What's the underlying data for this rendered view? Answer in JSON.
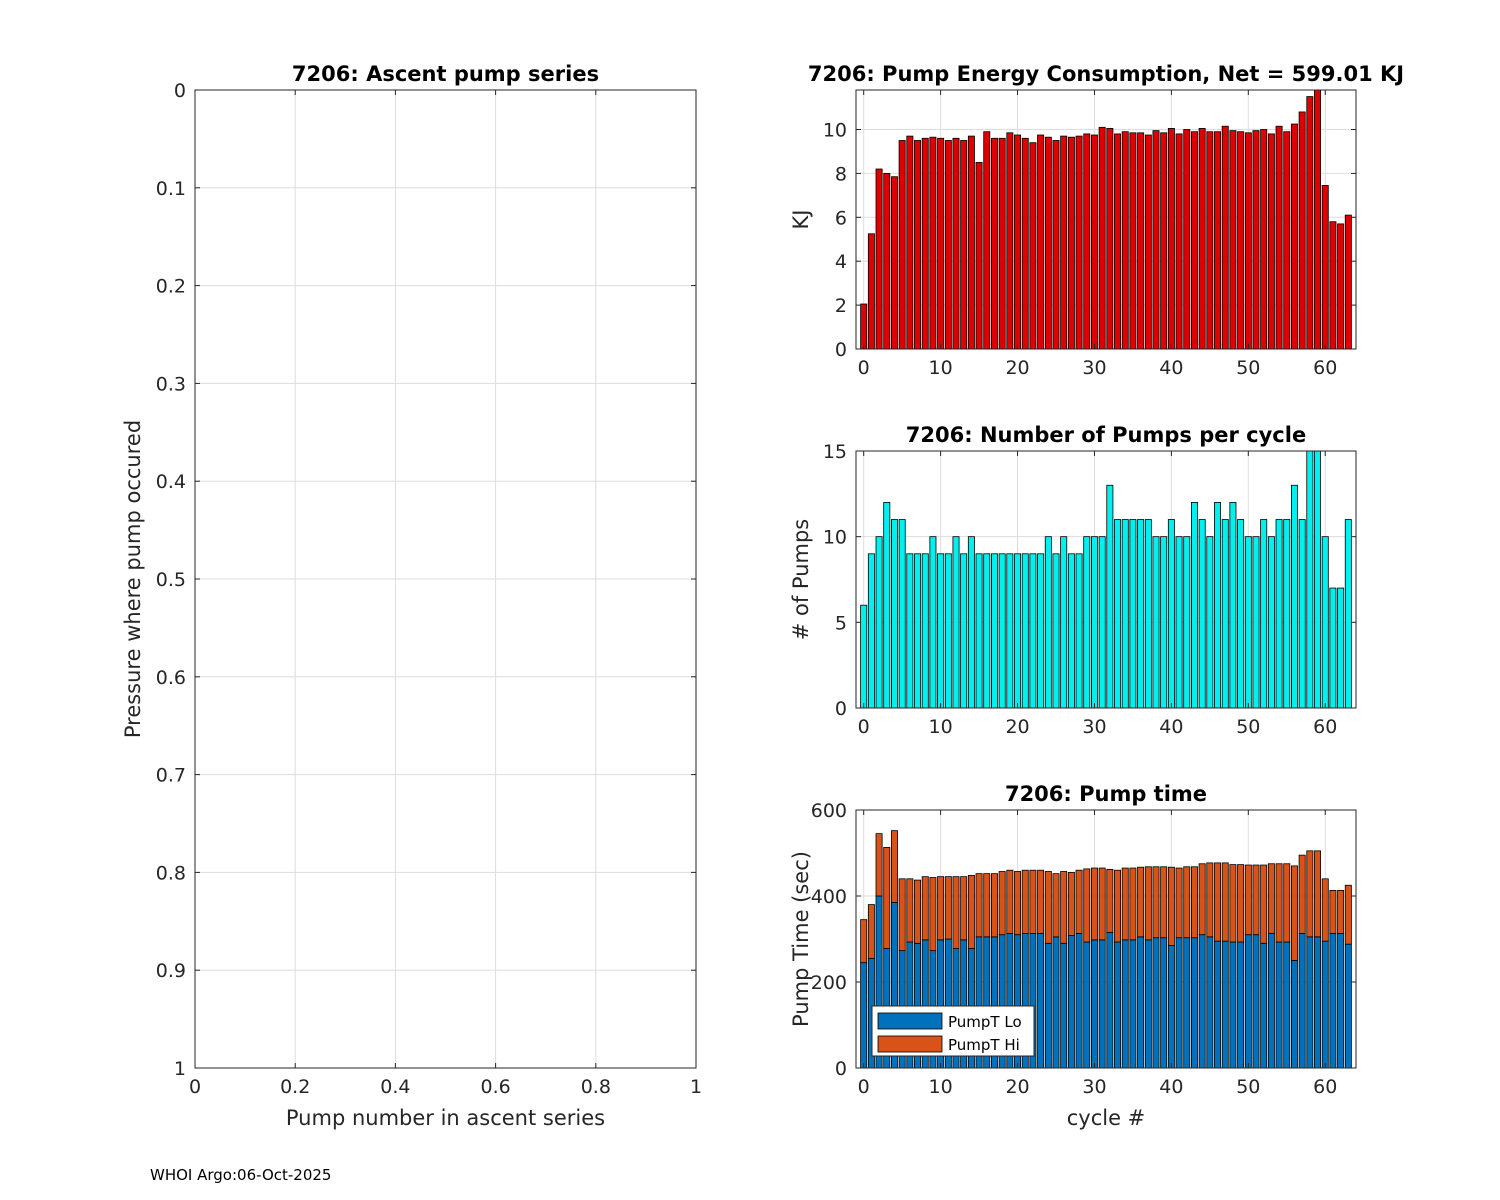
{
  "footer": "WHOI Argo:06-Oct-2025",
  "colors": {
    "energy_bar": "#e00000",
    "pumps_bar": "#00f0f0",
    "lo_bar": "#0072bd",
    "hi_bar": "#d95319",
    "grid": "#dddddd"
  },
  "chart_data": [
    {
      "id": "ascent",
      "type": "scatter",
      "title": "7206: Ascent pump series",
      "xlabel": "Pump number in ascent series",
      "ylabel": "Pressure where pump occured",
      "xlim": [
        0,
        1
      ],
      "ylim": [
        0,
        1
      ],
      "y_reversed": true,
      "xticks": [
        0,
        0.2,
        0.4,
        0.6,
        0.8,
        1
      ],
      "xtick_labels": [
        "0",
        "0.2",
        "0.4",
        "0.6",
        "0.8",
        "1"
      ],
      "yticks": [
        0,
        0.1,
        0.2,
        0.3,
        0.4,
        0.5,
        0.6,
        0.7,
        0.8,
        0.9,
        1
      ],
      "ytick_labels": [
        "0",
        "0.1",
        "0.2",
        "0.3",
        "0.4",
        "0.5",
        "0.6",
        "0.7",
        "0.8",
        "0.9",
        "1"
      ],
      "grid": true,
      "points": []
    },
    {
      "id": "energy",
      "type": "bar",
      "title": "7206: Pump Energy Consumption,  Net = 599.01 KJ",
      "xlabel": "",
      "ylabel": "KJ",
      "xlim": [
        -1,
        64
      ],
      "ylim": [
        0,
        11.8
      ],
      "xticks": [
        0,
        10,
        20,
        30,
        40,
        50,
        60
      ],
      "xtick_labels": [
        "0",
        "10",
        "20",
        "30",
        "40",
        "50",
        "60"
      ],
      "yticks": [
        0,
        2,
        4,
        6,
        8,
        10
      ],
      "ytick_labels": [
        "0",
        "2",
        "4",
        "6",
        "8",
        "10"
      ],
      "grid": true,
      "x": [
        0,
        1,
        2,
        3,
        4,
        5,
        6,
        7,
        8,
        9,
        10,
        11,
        12,
        13,
        14,
        15,
        16,
        17,
        18,
        19,
        20,
        21,
        22,
        23,
        24,
        25,
        26,
        27,
        28,
        29,
        30,
        31,
        32,
        33,
        34,
        35,
        36,
        37,
        38,
        39,
        40,
        41,
        42,
        43,
        44,
        45,
        46,
        47,
        48,
        49,
        50,
        51,
        52,
        53,
        54,
        55,
        56,
        57,
        58,
        59,
        60,
        61,
        62,
        63
      ],
      "values": [
        2.05,
        5.25,
        8.2,
        8.0,
        7.85,
        9.5,
        9.7,
        9.5,
        9.6,
        9.65,
        9.6,
        9.5,
        9.6,
        9.5,
        9.7,
        8.5,
        9.9,
        9.6,
        9.6,
        9.85,
        9.75,
        9.6,
        9.4,
        9.75,
        9.65,
        9.5,
        9.7,
        9.65,
        9.7,
        9.8,
        9.75,
        10.1,
        10.05,
        9.8,
        9.9,
        9.85,
        9.85,
        9.75,
        9.95,
        9.85,
        10.05,
        9.8,
        10.0,
        9.9,
        10.05,
        9.9,
        9.9,
        10.15,
        9.95,
        9.9,
        9.85,
        9.95,
        10.0,
        9.8,
        10.15,
        9.9,
        10.25,
        10.8,
        11.5,
        11.8,
        7.45,
        5.8,
        5.7,
        6.1
      ]
    },
    {
      "id": "pumps",
      "type": "bar",
      "title": "7206: Number of Pumps per cycle",
      "xlabel": "",
      "ylabel": "# of Pumps",
      "xlim": [
        -1,
        64
      ],
      "ylim": [
        0,
        15
      ],
      "xticks": [
        0,
        10,
        20,
        30,
        40,
        50,
        60
      ],
      "xtick_labels": [
        "0",
        "10",
        "20",
        "30",
        "40",
        "50",
        "60"
      ],
      "yticks": [
        0,
        5,
        10,
        15
      ],
      "ytick_labels": [
        "0",
        "5",
        "10",
        "15"
      ],
      "grid": true,
      "x": [
        0,
        1,
        2,
        3,
        4,
        5,
        6,
        7,
        8,
        9,
        10,
        11,
        12,
        13,
        14,
        15,
        16,
        17,
        18,
        19,
        20,
        21,
        22,
        23,
        24,
        25,
        26,
        27,
        28,
        29,
        30,
        31,
        32,
        33,
        34,
        35,
        36,
        37,
        38,
        39,
        40,
        41,
        42,
        43,
        44,
        45,
        46,
        47,
        48,
        49,
        50,
        51,
        52,
        53,
        54,
        55,
        56,
        57,
        58,
        59,
        60,
        61,
        62,
        63
      ],
      "values": [
        6,
        9,
        10,
        12,
        11,
        11,
        9,
        9,
        9,
        10,
        9,
        9,
        10,
        9,
        10,
        9,
        9,
        9,
        9,
        9,
        9,
        9,
        9,
        9,
        10,
        9,
        10,
        9,
        9,
        10,
        10,
        10,
        13,
        11,
        11,
        11,
        11,
        11,
        10,
        10,
        11,
        10,
        10,
        12,
        11,
        10,
        12,
        11,
        12,
        11,
        10,
        10,
        11,
        10,
        11,
        11,
        13,
        11,
        15,
        15,
        10,
        7,
        7,
        11
      ]
    },
    {
      "id": "pumptime",
      "type": "bar",
      "stacked": true,
      "title": "7206: Pump time",
      "xlabel": "cycle #",
      "ylabel": "Pump Time (sec)",
      "xlim": [
        -1,
        64
      ],
      "ylim": [
        0,
        600
      ],
      "xticks": [
        0,
        10,
        20,
        30,
        40,
        50,
        60
      ],
      "xtick_labels": [
        "0",
        "10",
        "20",
        "30",
        "40",
        "50",
        "60"
      ],
      "yticks": [
        0,
        200,
        400,
        600
      ],
      "ytick_labels": [
        "0",
        "200",
        "400",
        "600"
      ],
      "grid": true,
      "legend": {
        "location": "bottom-left",
        "entries": [
          "PumpT Lo",
          "PumpT Hi"
        ]
      },
      "x": [
        0,
        1,
        2,
        3,
        4,
        5,
        6,
        7,
        8,
        9,
        10,
        11,
        12,
        13,
        14,
        15,
        16,
        17,
        18,
        19,
        20,
        21,
        22,
        23,
        24,
        25,
        26,
        27,
        28,
        29,
        30,
        31,
        32,
        33,
        34,
        35,
        36,
        37,
        38,
        39,
        40,
        41,
        42,
        43,
        44,
        45,
        46,
        47,
        48,
        49,
        50,
        51,
        52,
        53,
        54,
        55,
        56,
        57,
        58,
        59,
        60,
        61,
        62,
        63
      ],
      "series": [
        {
          "name": "PumpT Lo",
          "values": [
            245,
            255,
            400,
            278,
            385,
            273,
            293,
            290,
            298,
            273,
            298,
            300,
            278,
            298,
            278,
            305,
            305,
            305,
            310,
            313,
            310,
            313,
            313,
            313,
            290,
            305,
            290,
            308,
            313,
            293,
            298,
            298,
            315,
            293,
            298,
            298,
            305,
            298,
            303,
            303,
            285,
            303,
            303,
            303,
            310,
            305,
            295,
            295,
            293,
            293,
            310,
            310,
            290,
            313,
            293,
            293,
            250,
            313,
            305,
            305,
            295,
            313,
            313,
            288
          ]
        },
        {
          "name": "PumpT Hi",
          "values": [
            100,
            125,
            145,
            235,
            167,
            167,
            147,
            147,
            147,
            170,
            147,
            145,
            167,
            147,
            170,
            147,
            147,
            147,
            147,
            147,
            147,
            147,
            147,
            147,
            167,
            147,
            167,
            147,
            147,
            170,
            167,
            167,
            147,
            167,
            167,
            167,
            162,
            170,
            165,
            165,
            182,
            162,
            165,
            165,
            165,
            172,
            182,
            182,
            180,
            180,
            162,
            162,
            182,
            162,
            182,
            182,
            220,
            182,
            200,
            200,
            145,
            100,
            100,
            137
          ]
        }
      ]
    }
  ]
}
